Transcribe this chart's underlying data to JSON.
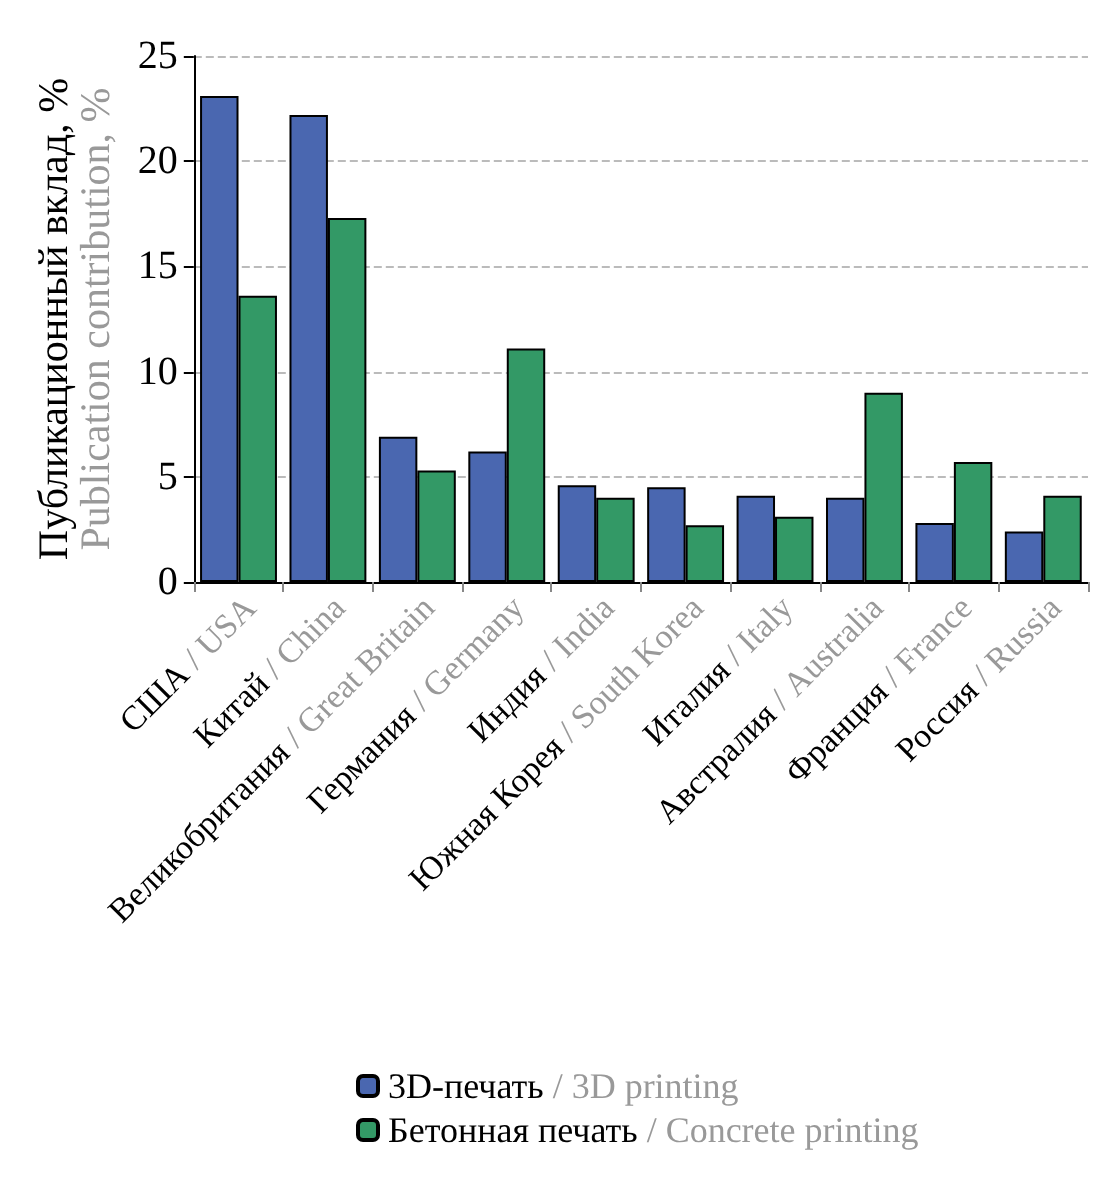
{
  "chart_data": {
    "type": "bar",
    "ylabel": "Публикационный вклад, %\nPublication contribution, %",
    "categories": [
      "США / USA",
      "Китай / China",
      "Великобритания / Great Britain",
      "Германия / Germany",
      "Индия / India",
      "Южная Корея / South Korea",
      "Италия / Italy",
      "Австралия / Australia",
      "Франция / France",
      "Россия / Russia"
    ],
    "series": [
      {
        "name": "3D-печать / 3D printing",
        "color": "#4a67b0",
        "values": [
          23.1,
          22.2,
          6.9,
          6.2,
          4.6,
          4.5,
          4.1,
          4.0,
          2.8,
          2.4
        ]
      },
      {
        "name": "Бетонная печать / Concrete printing",
        "color": "#339966",
        "values": [
          13.6,
          17.3,
          5.3,
          11.1,
          4.0,
          2.7,
          3.1,
          9.0,
          5.7,
          4.1
        ]
      }
    ],
    "ylim": [
      0,
      25
    ],
    "yticks": [
      0,
      5,
      10,
      15,
      20,
      25
    ],
    "grid": "y",
    "legend": "bottom"
  }
}
